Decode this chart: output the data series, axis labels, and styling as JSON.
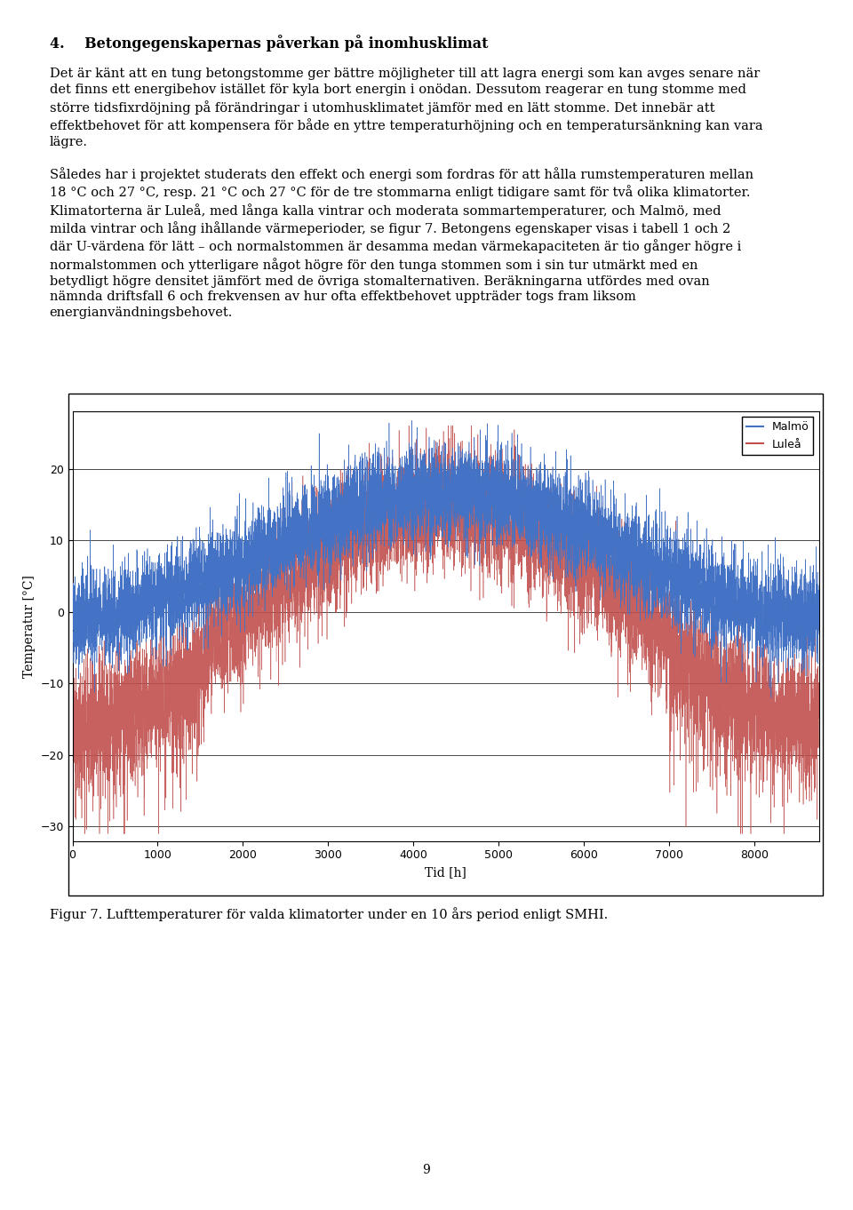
{
  "figsize": [
    9.6,
    13.62
  ],
  "dpi": 100,
  "background_color": "#ffffff",
  "page_number": "9",
  "heading": "4. Betongegenskapernas påverkan på inomhusklimat",
  "paragraph1": "Det är känt att en tung betongstomme ger bättre möjligheter till att lagra energi som kan avges senare när\ndet finns ett energibehov istället för kyla bort energin i onödan. Dessutom reagerar en tung stomme med\nstörre tidsfixrdöjning på förändringar i utomhusklimatet jämför med en lätt stomme. Det innebär att\neffektbehovet för att kompensera för både en yttre temperaturhöjning och en temperatursänkning kan vara\nlägre.",
  "paragraph2": "Således har i projektet studerats den effekt och energi som fordras för att hålla rumstemperaturen mellan\n18 °C och 27 °C, resp. 21 °C och 27 °C för de tre stommarna enligt tidigare samt för två olika klimatorter.\nKlimatorterna är Luleå, med långa kalla vintrar och moderata sommartemperaturer, och Malmö, med\nmilda vintrar och lång ihållande värmeperioder, se figur 7. Betongens egenskaper visas i tabell 1 och 2\ndär U-värdena för lätt – och normalstommen är desamma medan värmekapaciteten är tio gånger högre i\nnormalstommen och ytterligare något högre för den tunga stommen som i sin tur utmärkt med en\nbetydligt högre densitet jämfört med de övriga stomalternativen. Beräkningarna utfördes med ovan\nnämnda driftsfall 6 och frekvensen av hur ofta effektbehovet uppträder togs fram liksom\nenergiAnvändningsbehovet.",
  "fig_caption": "Figur 7. Lufttemperaturer för valda klimatorter under en 10 års period enligt SMHI.",
  "xlabel": "Tid [h]",
  "ylabel": "Temperatur [°C]",
  "legend_malmo": "Malmö",
  "legend_lulea": "Luleå",
  "color_malmo": "#4472C4",
  "color_lulea": "#C0504D",
  "xlim": [
    0,
    8760
  ],
  "ylim": [
    -32,
    28
  ],
  "yticks": [
    -30,
    -20,
    -10,
    0,
    10,
    20
  ],
  "xticks": [
    0,
    1000,
    2000,
    3000,
    4000,
    5000,
    6000,
    7000,
    8000
  ],
  "seed": 42,
  "n_hours": 8760,
  "line_width": 0.4
}
